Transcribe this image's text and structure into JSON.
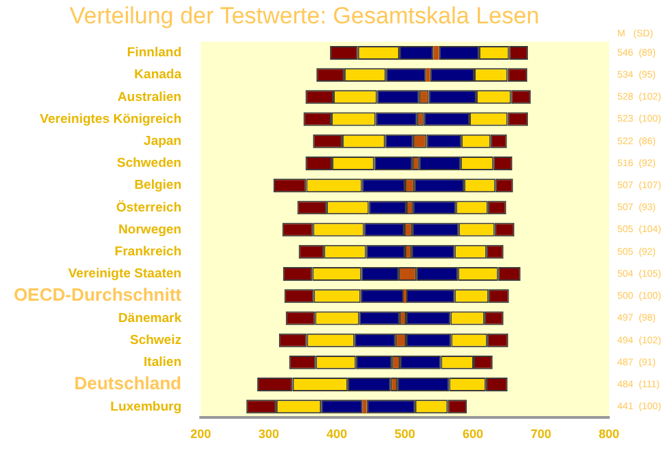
{
  "chart_data": {
    "type": "bar",
    "orientation": "horizontal",
    "title": "Verteilung der Testwerte: Gesamtskala Lesen",
    "categories": [
      "Finnland",
      "Kanada",
      "Australien",
      "Vereinigtes Königreich",
      "Japan",
      "Schweden",
      "Belgien",
      "Österreich",
      "Norwegen",
      "Frankreich",
      "Vereinigte Staaten",
      "OECD-Durchschnitt",
      "Dänemark",
      "Schweiz",
      "Italien",
      "Deutschland",
      "Luxemburg"
    ],
    "series": [
      {
        "color": "#800000",
        "base": [
          390,
          370,
          354,
          351,
          365,
          354,
          307,
          342,
          320,
          344,
          321,
          323,
          325,
          315,
          330,
          283,
          267
        ],
        "values": [
          41,
          41,
          41,
          41,
          43,
          39,
          48,
          43,
          45,
          37,
          43,
          43,
          43,
          41,
          39,
          52,
          44
        ]
      },
      {
        "color": "#ffd700",
        "base": [
          431,
          411,
          395,
          392,
          408,
          393,
          355,
          385,
          365,
          381,
          364,
          366,
          368,
          356,
          369,
          335,
          311
        ],
        "values": [
          61,
          61,
          64,
          65,
          63,
          62,
          82,
          62,
          75,
          62,
          72,
          69,
          65,
          70,
          59,
          81,
          66
        ]
      },
      {
        "color": "#000080",
        "base": [
          492,
          472,
          459,
          457,
          471,
          455,
          437,
          447,
          440,
          443,
          436,
          435,
          433,
          426,
          428,
          416,
          377
        ],
        "values": [
          50,
          59,
          62,
          61,
          41,
          56,
          63,
          55,
          59,
          57,
          55,
          63,
          59,
          60,
          53,
          63,
          61
        ]
      },
      {
        "color": "#c0500a",
        "base": [
          542,
          531,
          521,
          518,
          512,
          511,
          500,
          502,
          499,
          500,
          491,
          498,
          492,
          486,
          481,
          479,
          438
        ],
        "values": [
          8,
          6,
          14,
          10,
          20,
          10,
          14,
          10,
          12,
          10,
          26,
          4,
          10,
          16,
          12,
          10,
          6
        ]
      },
      {
        "color": "#000080",
        "base": [
          550,
          537,
          535,
          528,
          532,
          521,
          514,
          512,
          511,
          510,
          517,
          502,
          502,
          502,
          493,
          489,
          444
        ],
        "values": [
          59,
          65,
          70,
          67,
          51,
          61,
          73,
          63,
          68,
          63,
          61,
          71,
          65,
          66,
          60,
          76,
          71
        ]
      },
      {
        "color": "#ffd700",
        "base": [
          609,
          602,
          605,
          595,
          583,
          582,
          587,
          575,
          579,
          573,
          578,
          573,
          567,
          568,
          553,
          565,
          515
        ],
        "values": [
          44,
          49,
          51,
          56,
          43,
          48,
          46,
          47,
          53,
          47,
          59,
          50,
          50,
          53,
          48,
          54,
          48
        ]
      },
      {
        "color": "#800000",
        "base": [
          653,
          651,
          656,
          651,
          626,
          630,
          633,
          622,
          632,
          620,
          637,
          623,
          617,
          621,
          601,
          619,
          563
        ],
        "values": [
          28,
          29,
          29,
          30,
          24,
          28,
          26,
          27,
          29,
          25,
          33,
          30,
          28,
          31,
          28,
          32,
          28
        ]
      }
    ],
    "xlim": [
      200,
      800
    ],
    "xticks": [
      200,
      300,
      400,
      500,
      600,
      700,
      800
    ],
    "grid": false,
    "legend": false,
    "annotations": [
      "M   (SD)",
      "546  (89)",
      "534  (95)",
      "528  (102)",
      "523  (100)",
      "522  (86)",
      "516  (92)",
      "507  (107)",
      "507  (93)",
      "505  (104)",
      "505  (92)",
      "504  (105)",
      "500  (100)",
      "497  (98)",
      "494  (102)",
      "487  (91)",
      "484  (111)",
      "441  (100)"
    ]
  }
}
